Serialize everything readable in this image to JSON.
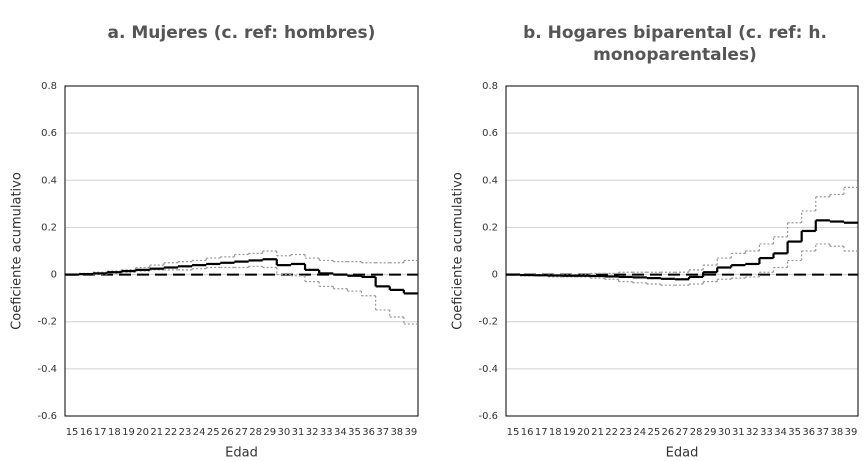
{
  "chart_data": [
    {
      "type": "step",
      "title": "a. Mujeres (c. ref: hombres)",
      "x_label": "Edad",
      "y_label": "Coeficiente acumulativo",
      "categories": [
        "15",
        "16",
        "17",
        "18",
        "19",
        "20",
        "21",
        "22",
        "23",
        "24",
        "25",
        "26",
        "27",
        "28",
        "29",
        "30",
        "31",
        "32",
        "33",
        "34",
        "35",
        "36",
        "37",
        "38",
        "39"
      ],
      "series": [
        {
          "color": "#999999",
          "dash": true,
          "values": [
            0,
            0.005,
            0.01,
            0.015,
            0.02,
            0.03,
            0.04,
            0.05,
            0.055,
            0.06,
            0.07,
            0.075,
            0.085,
            0.09,
            0.1,
            0.08,
            0.085,
            0.07,
            0.06,
            0.055,
            0.055,
            0.05,
            0.05,
            0.05,
            0.06
          ]
        },
        {
          "color": "#999999",
          "dash": true,
          "values": [
            0,
            0,
            0,
            0.005,
            0.01,
            0.015,
            0.02,
            0.02,
            0.02,
            0.025,
            0.03,
            0.03,
            0.03,
            0.035,
            0.03,
            0,
            -0.005,
            -0.03,
            -0.05,
            -0.06,
            -0.07,
            -0.09,
            -0.15,
            -0.18,
            -0.21
          ]
        },
        {
          "color": "#000000",
          "dash": false,
          "values": [
            0,
            0.002,
            0.005,
            0.01,
            0.015,
            0.02,
            0.025,
            0.03,
            0.035,
            0.04,
            0.045,
            0.05,
            0.055,
            0.06,
            0.065,
            0.04,
            0.045,
            0.02,
            0.005,
            0,
            -0.005,
            -0.01,
            -0.05,
            -0.065,
            -0.08
          ]
        }
      ],
      "reference_line": 0,
      "ylim": [
        -0.6,
        0.8
      ],
      "yticks": [
        -0.6,
        -0.4,
        -0.2,
        0,
        0.2,
        0.4,
        0.6,
        0.8
      ],
      "grid": true
    },
    {
      "type": "step",
      "title": "b. Hogares biparental (c. ref: h. monoparentales)",
      "x_label": "Edad",
      "y_label": "Coeficiente acumulativo",
      "categories": [
        "15",
        "16",
        "17",
        "18",
        "19",
        "20",
        "21",
        "22",
        "23",
        "24",
        "25",
        "26",
        "27",
        "28",
        "29",
        "30",
        "31",
        "32",
        "33",
        "34",
        "35",
        "36",
        "37",
        "38",
        "39"
      ],
      "series": [
        {
          "color": "#999999",
          "dash": true,
          "values": [
            0,
            0,
            0,
            0,
            0,
            0,
            0.005,
            0.005,
            0.01,
            0.01,
            0.01,
            0.01,
            0.01,
            0.02,
            0.04,
            0.07,
            0.09,
            0.1,
            0.13,
            0.16,
            0.22,
            0.27,
            0.33,
            0.34,
            0.37
          ]
        },
        {
          "color": "#999999",
          "dash": true,
          "values": [
            0,
            -0.005,
            -0.005,
            -0.01,
            -0.01,
            -0.01,
            -0.015,
            -0.02,
            -0.03,
            -0.035,
            -0.04,
            -0.045,
            -0.045,
            -0.04,
            -0.03,
            -0.02,
            -0.015,
            -0.01,
            0.01,
            0.03,
            0.06,
            0.1,
            0.13,
            0.12,
            0.1
          ]
        },
        {
          "color": "#000000",
          "dash": false,
          "values": [
            0,
            -0.002,
            -0.003,
            -0.004,
            -0.005,
            -0.005,
            -0.006,
            -0.008,
            -0.01,
            -0.012,
            -0.015,
            -0.018,
            -0.02,
            -0.01,
            0.01,
            0.03,
            0.04,
            0.045,
            0.07,
            0.09,
            0.14,
            0.185,
            0.23,
            0.225,
            0.22
          ]
        }
      ],
      "reference_line": 0,
      "ylim": [
        -0.6,
        0.8
      ],
      "yticks": [
        -0.6,
        -0.4,
        -0.2,
        0,
        0.2,
        0.4,
        0.6,
        0.8
      ],
      "grid": true
    }
  ]
}
